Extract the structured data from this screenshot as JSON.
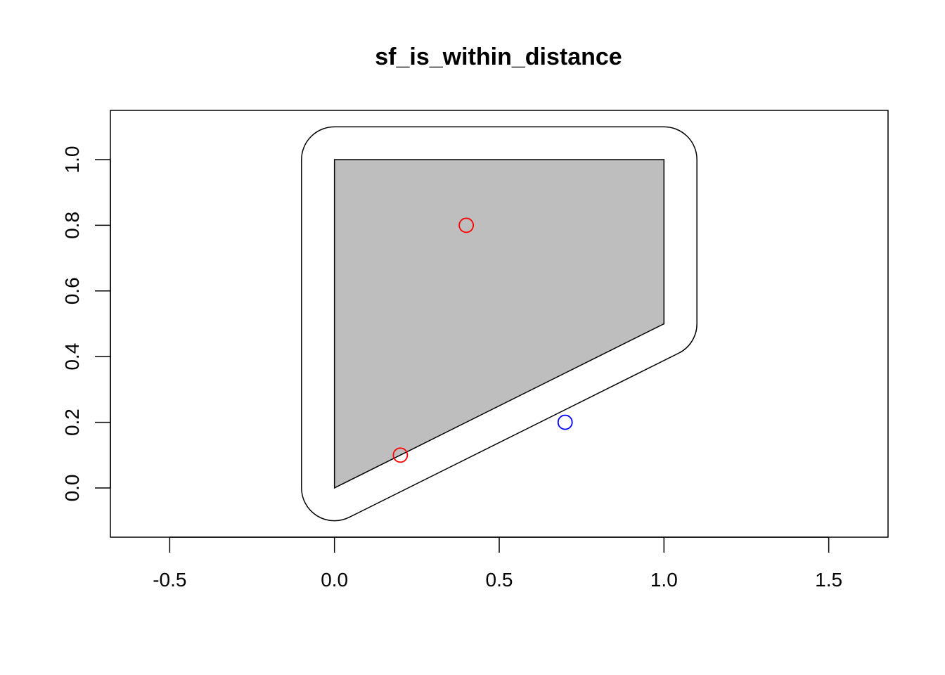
{
  "chart_data": {
    "type": "scatter",
    "title": "sf_is_within_distance",
    "xlabel": "",
    "ylabel": "",
    "xlim": [
      -0.68,
      1.68
    ],
    "ylim": [
      -0.15,
      1.15
    ],
    "x_ticks": [
      -0.5,
      0.0,
      0.5,
      1.0,
      1.5
    ],
    "x_tick_labels": [
      "-0.5",
      "0.0",
      "0.5",
      "1.0",
      "1.5"
    ],
    "y_ticks": [
      0.0,
      0.2,
      0.4,
      0.6,
      0.8,
      1.0
    ],
    "y_tick_labels": [
      "0.0",
      "0.2",
      "0.4",
      "0.6",
      "0.8",
      "1.0"
    ],
    "grid": false,
    "polygon": {
      "vertices": [
        [
          0,
          0
        ],
        [
          1,
          0.5
        ],
        [
          1,
          1
        ],
        [
          0,
          1
        ]
      ],
      "fill": "#BEBEBE",
      "stroke": "#000000"
    },
    "buffer": {
      "distance": 0.1,
      "fill": "#FFFFFF",
      "stroke": "#000000"
    },
    "points": [
      {
        "x": 0.4,
        "y": 0.8,
        "color": "#FF0000"
      },
      {
        "x": 0.2,
        "y": 0.1,
        "color": "#FF0000"
      },
      {
        "x": 0.7,
        "y": 0.2,
        "color": "#0000FF"
      }
    ]
  }
}
